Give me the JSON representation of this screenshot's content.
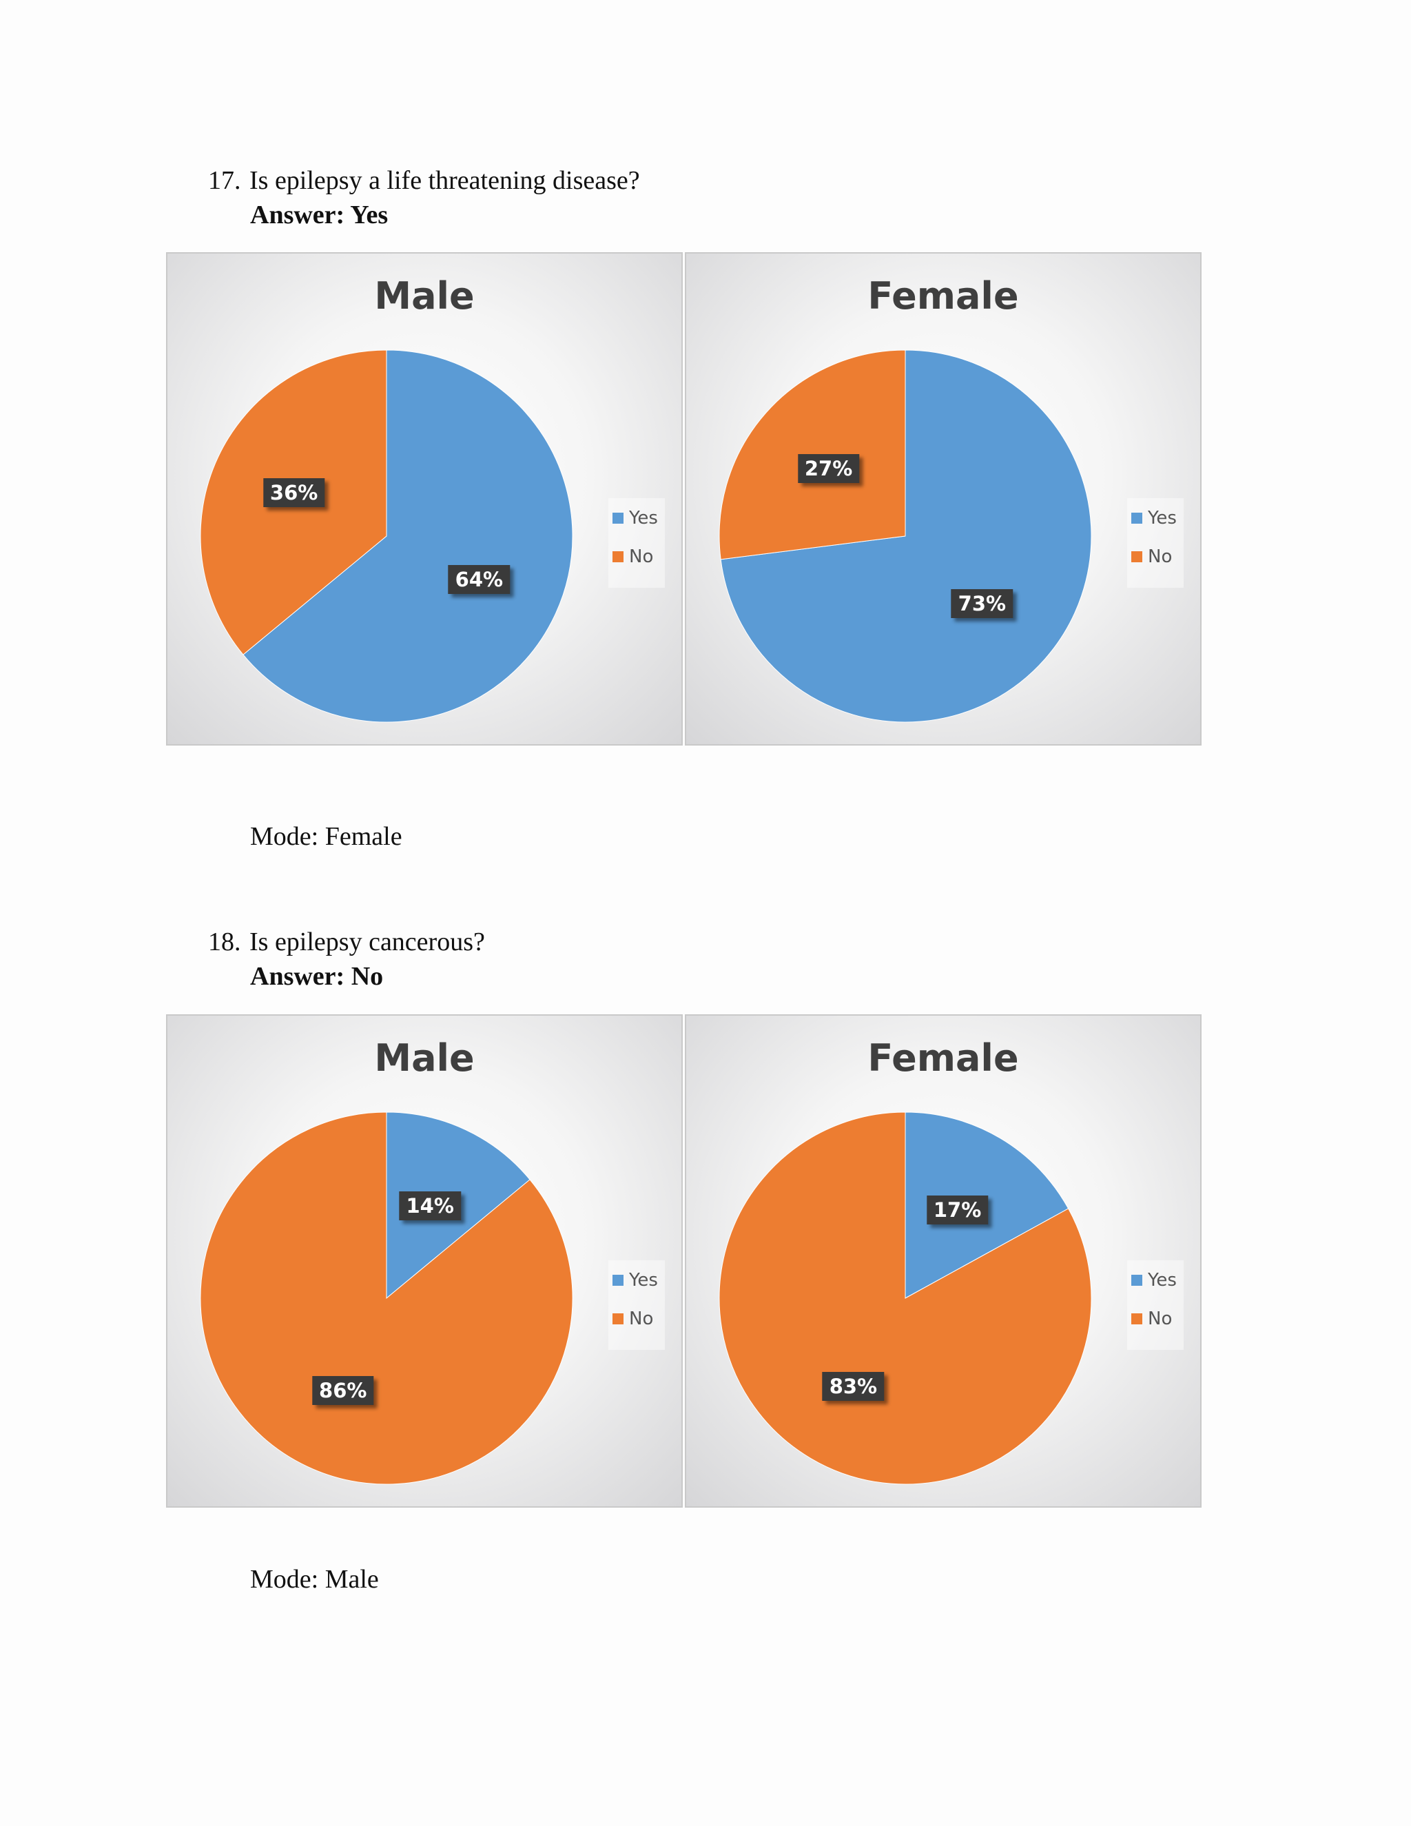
{
  "questions": [
    {
      "number": "17.",
      "question": "Is epilepsy a life threatening disease?",
      "answer": "Answer: Yes",
      "mode": "Mode: Female"
    },
    {
      "number": "18.",
      "question": "Is epilepsy cancerous?",
      "answer": "Answer: No",
      "mode": "Mode: Male"
    }
  ],
  "legend": {
    "yes": "Yes",
    "no": "No"
  },
  "colors": {
    "yes": "#5b9bd5",
    "no": "#ed7d31",
    "label_bg": "#3a3a3a"
  },
  "chart_data": [
    {
      "type": "pie",
      "title": "Male",
      "categories": [
        "Yes",
        "No"
      ],
      "values": [
        64,
        36
      ],
      "labels": [
        "64%",
        "36%"
      ],
      "legend": "right"
    },
    {
      "type": "pie",
      "title": "Female",
      "categories": [
        "Yes",
        "No"
      ],
      "values": [
        73,
        27
      ],
      "labels": [
        "73%",
        "27%"
      ],
      "legend": "right"
    },
    {
      "type": "pie",
      "title": "Male",
      "categories": [
        "Yes",
        "No"
      ],
      "values": [
        14,
        86
      ],
      "labels": [
        "14%",
        "86%"
      ],
      "legend": "right"
    },
    {
      "type": "pie",
      "title": "Female",
      "categories": [
        "Yes",
        "No"
      ],
      "values": [
        17,
        83
      ],
      "labels": [
        "17%",
        "83%"
      ],
      "legend": "right"
    }
  ]
}
